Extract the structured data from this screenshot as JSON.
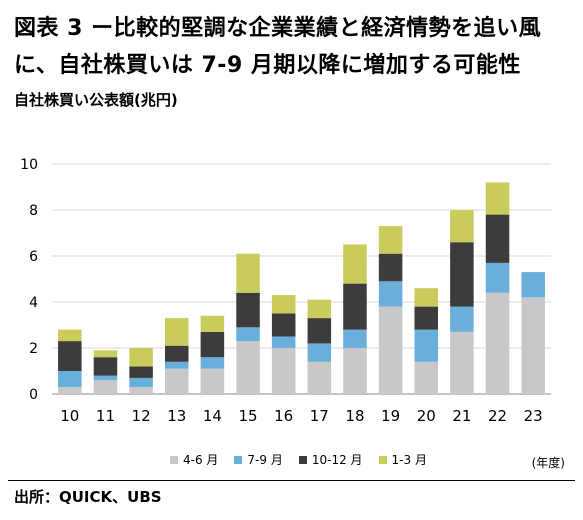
{
  "header": {
    "title_line1": "図表 3 ー比較的堅調な企業業績と経済情勢を追い風",
    "title_line2": "に、自社株買いは 7-9 月期以降に増加する可能性",
    "subtitle": "自社株買い公表額(兆円)"
  },
  "chart_data": {
    "type": "bar",
    "stacked": true,
    "categories": [
      "10",
      "11",
      "12",
      "13",
      "14",
      "15",
      "16",
      "17",
      "18",
      "19",
      "20",
      "21",
      "22",
      "23"
    ],
    "ylim": [
      0,
      10
    ],
    "yticks": [
      0,
      2,
      4,
      6,
      8,
      10
    ],
    "grid": true,
    "legend_position": "bottom",
    "series": [
      {
        "name": "4-6 月",
        "color": "#c8c8c8",
        "values": [
          0.3,
          0.6,
          0.3,
          1.1,
          1.1,
          2.3,
          2.0,
          1.4,
          2.0,
          3.8,
          1.4,
          2.7,
          4.4,
          4.2
        ]
      },
      {
        "name": "7-9 月",
        "color": "#6aaedb",
        "values": [
          0.7,
          0.2,
          0.4,
          0.3,
          0.5,
          0.6,
          0.5,
          0.8,
          0.8,
          1.1,
          1.4,
          1.1,
          1.3,
          1.1
        ]
      },
      {
        "name": "10-12 月",
        "color": "#3c3c3c",
        "values": [
          1.3,
          0.8,
          0.5,
          0.7,
          1.1,
          1.5,
          1.0,
          1.1,
          2.0,
          1.2,
          1.0,
          2.8,
          2.1,
          0
        ]
      },
      {
        "name": "1-3 月",
        "color": "#c9cc5a",
        "values": [
          0.5,
          0.3,
          0.8,
          1.2,
          0.7,
          1.7,
          0.8,
          0.8,
          1.7,
          1.2,
          0.8,
          1.4,
          1.4,
          0
        ]
      }
    ]
  },
  "unit_note": "(年度)",
  "source": "出所：QUICK、UBS"
}
